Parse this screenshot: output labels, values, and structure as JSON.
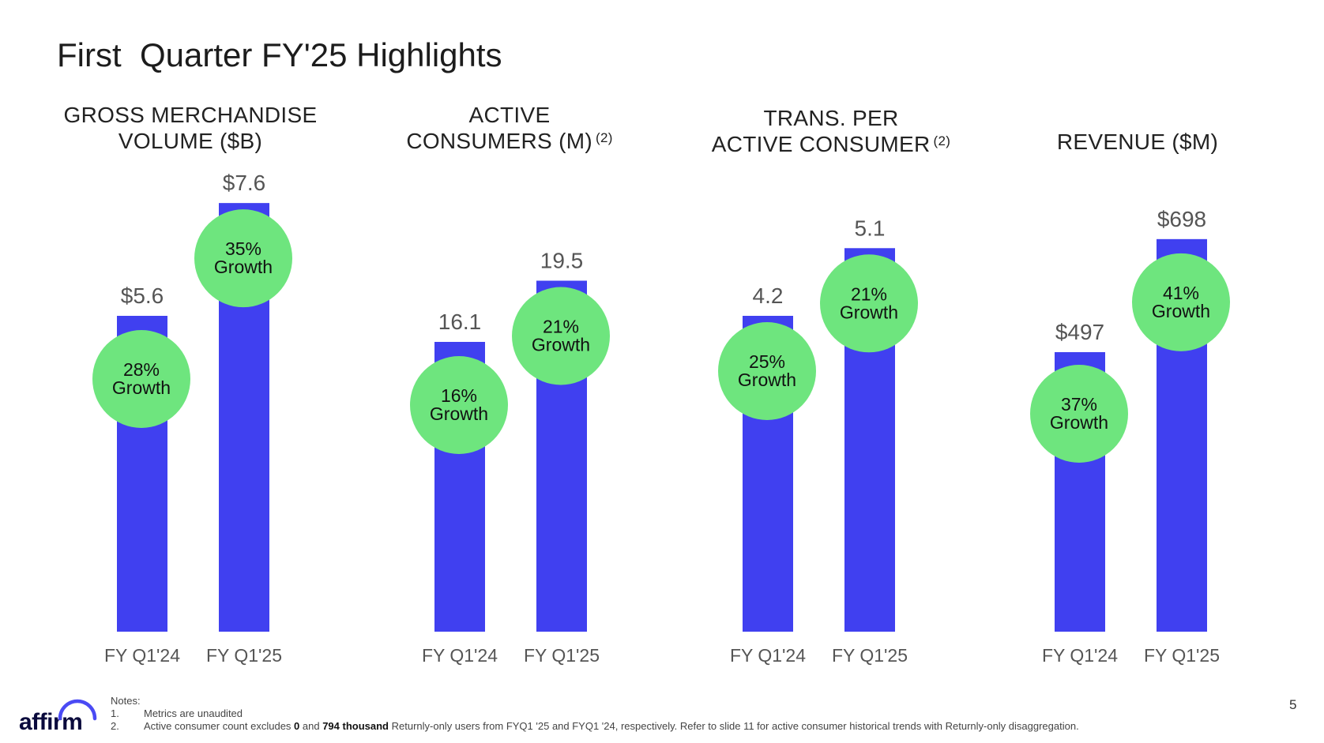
{
  "title": "First  Quarter FY'25 Highlights",
  "colors": {
    "bar": "#4040f0",
    "bubble": "#6ee57e",
    "text": "#222222",
    "value_text": "#555555"
  },
  "chart_data": [
    {
      "type": "bar",
      "title_lines": [
        "GROSS MERCHANDISE",
        "VOLUME ($B)"
      ],
      "title_sup": "",
      "categories": [
        "FY Q1'24",
        "FY Q1'25"
      ],
      "values": [
        5.6,
        7.6
      ],
      "value_labels": [
        "$5.6",
        "$7.6"
      ],
      "growth_pct": [
        "28%",
        "35%"
      ],
      "growth_word": "Growth"
    },
    {
      "type": "bar",
      "title_lines": [
        "ACTIVE",
        "CONSUMERS (M)"
      ],
      "title_sup": "(2)",
      "categories": [
        "FY Q1'24",
        "FY Q1'25"
      ],
      "values": [
        16.1,
        19.5
      ],
      "value_labels": [
        "16.1",
        "19.5"
      ],
      "growth_pct": [
        "16%",
        "21%"
      ],
      "growth_word": "Growth"
    },
    {
      "type": "bar",
      "title_lines": [
        "TRANS. PER",
        "ACTIVE CONSUMER"
      ],
      "title_sup": "(2)",
      "categories": [
        "FY Q1'24",
        "FY Q1'25"
      ],
      "values": [
        4.2,
        5.1
      ],
      "value_labels": [
        "4.2",
        "5.1"
      ],
      "growth_pct": [
        "25%",
        "21%"
      ],
      "growth_word": "Growth"
    },
    {
      "type": "bar",
      "title_lines": [
        "REVENUE ($M)"
      ],
      "title_sup": "",
      "categories": [
        "FY Q1'24",
        "FY Q1'25"
      ],
      "values": [
        497,
        698
      ],
      "value_labels": [
        "$497",
        "$698"
      ],
      "growth_pct": [
        "37%",
        "41%"
      ],
      "growth_word": "Growth"
    }
  ],
  "notes": {
    "heading": "Notes:",
    "items": [
      {
        "num": "1.",
        "text": "Metrics are unaudited"
      },
      {
        "num": "2.",
        "parts": [
          "Active consumer count excludes ",
          "0",
          " and ",
          "794 thousand",
          " Returnly-only users from FYQ1 '25 and FYQ1 '24, respectively. Refer to slide 11 for active consumer historical trends with Returnly-only disaggregation."
        ]
      }
    ]
  },
  "logo": {
    "text": "affirm",
    "icon": "affirm-arc-icon"
  },
  "page_number": "5"
}
